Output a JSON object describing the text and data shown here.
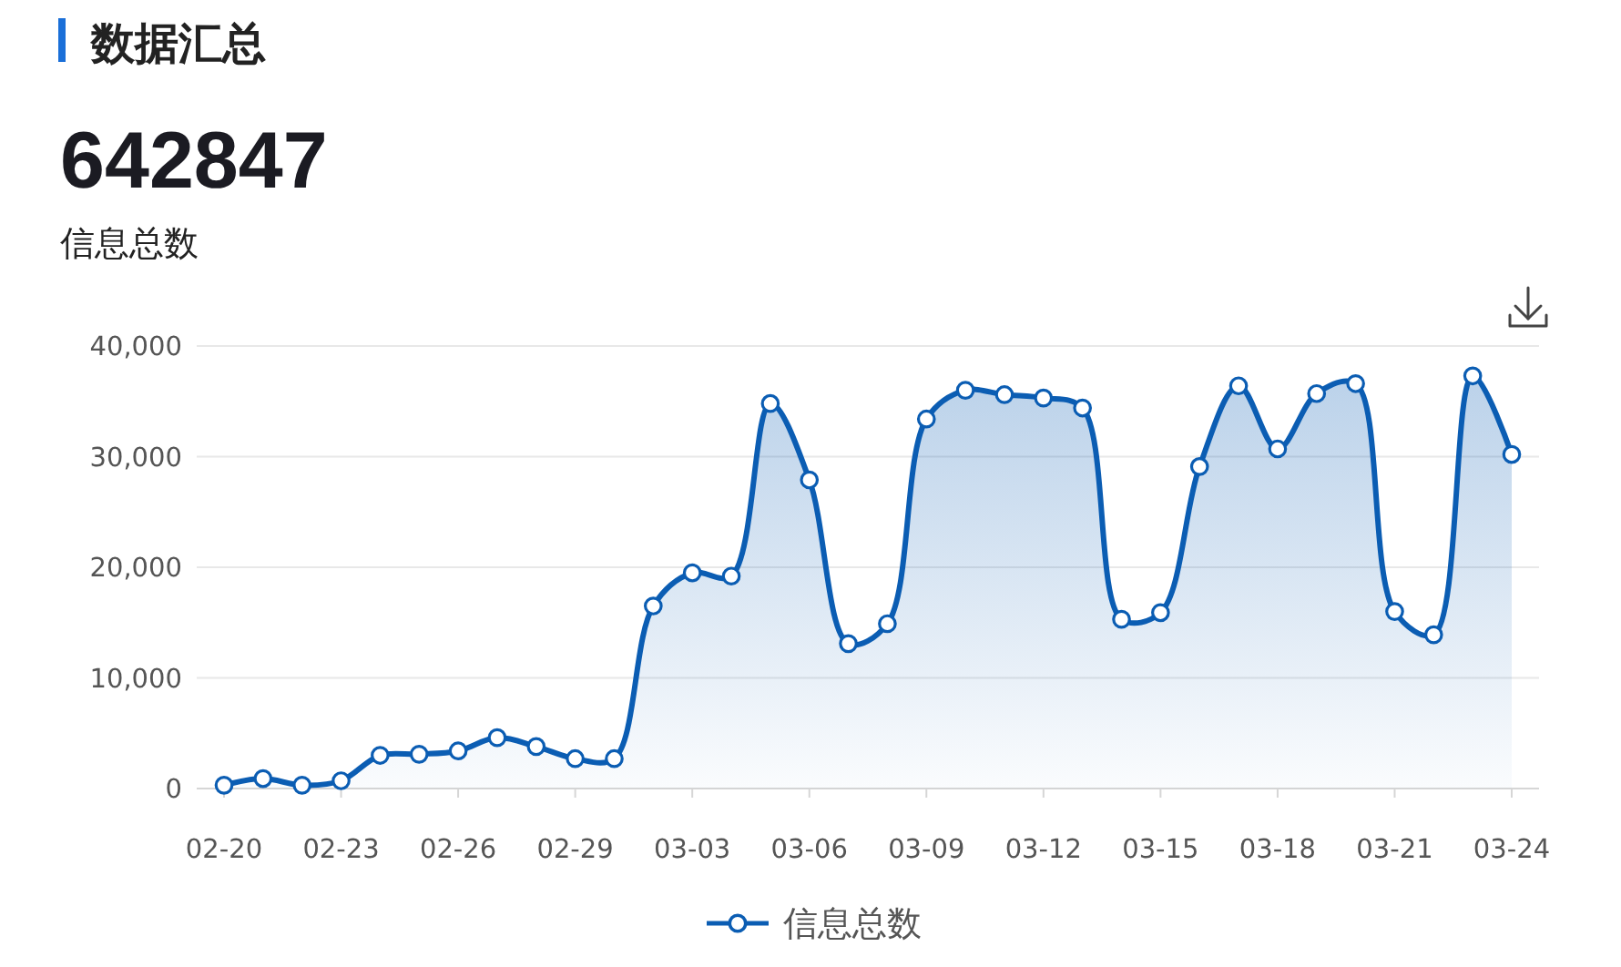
{
  "chart_data": {
    "type": "area",
    "title": "数据汇总",
    "annotations": [
      "642847",
      "信息总数"
    ],
    "categories": [
      "02-20",
      null,
      null,
      "02-23",
      null,
      null,
      "02-26",
      null,
      null,
      "02-29",
      null,
      null,
      "03-03",
      null,
      null,
      "03-06",
      null,
      null,
      "03-09",
      null,
      null,
      "03-12",
      null,
      null,
      "03-15",
      null,
      null,
      "03-18",
      null,
      null,
      "03-21",
      null,
      null,
      "03-24"
    ],
    "series": [
      {
        "name": "信息总数",
        "color": "#0b5db3",
        "values": [
          300,
          900,
          300,
          700,
          3000,
          3100,
          3400,
          4600,
          3800,
          2700,
          2700,
          16500,
          19500,
          19200,
          34800,
          27900,
          13100,
          14900,
          33400,
          36000,
          35600,
          35300,
          34400,
          15300,
          15900,
          29100,
          36400,
          30700,
          35700,
          36600,
          16000,
          13900,
          37300,
          30200
        ]
      }
    ],
    "ylim": [
      0,
      40000
    ],
    "yticks": [
      {
        "value": 0,
        "label": "0"
      },
      {
        "value": 10000,
        "label": "10,000"
      },
      {
        "value": 20000,
        "label": "20,000"
      },
      {
        "value": 30000,
        "label": "30,000"
      },
      {
        "value": 40000,
        "label": "40,000"
      }
    ],
    "grid": "y",
    "legend": "bottom",
    "marker": "circle"
  }
}
